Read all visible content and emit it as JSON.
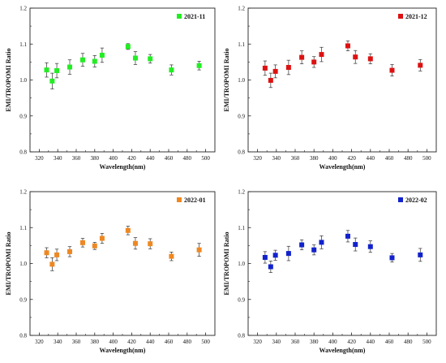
{
  "chart_data": [
    {
      "type": "scatter",
      "title": "",
      "xlabel": "Wavelength(nm)",
      "ylabel": "EMI/TROPOMI Ratio",
      "xlim": [
        310,
        510
      ],
      "ylim": [
        0.8,
        1.2
      ],
      "xticks": [
        "320",
        "340",
        "360",
        "380",
        "400",
        "420",
        "440",
        "460",
        "480",
        "500"
      ],
      "yticks": [
        "0.8",
        "0.9",
        "1.0",
        "1.1",
        "1.2"
      ],
      "legend_position": "top-right",
      "grid": false,
      "series": [
        {
          "name": "2021-11",
          "color": "#22ee22",
          "marker": "square",
          "x": [
            328,
            334,
            339,
            353,
            367,
            380,
            388,
            416,
            424,
            440,
            463,
            493
          ],
          "y": [
            1.028,
            0.997,
            1.026,
            1.036,
            1.056,
            1.052,
            1.069,
            1.093,
            1.061,
            1.059,
            1.028,
            1.04
          ],
          "err": [
            0.02,
            0.022,
            0.02,
            0.02,
            0.018,
            0.016,
            0.02,
            0.008,
            0.018,
            0.012,
            0.014,
            0.012
          ]
        }
      ]
    },
    {
      "type": "scatter",
      "title": "",
      "xlabel": "Wavelength(nm)",
      "ylabel": "EMI/TROPOMI Ratio",
      "xlim": [
        310,
        510
      ],
      "ylim": [
        0.8,
        1.2
      ],
      "xticks": [
        "320",
        "340",
        "360",
        "380",
        "400",
        "420",
        "440",
        "460",
        "480",
        "500"
      ],
      "yticks": [
        "0.8",
        "0.9",
        "1.0",
        "1.1",
        "1.2"
      ],
      "legend_position": "top-right",
      "grid": false,
      "series": [
        {
          "name": "2021-12",
          "color": "#dd1111",
          "marker": "square",
          "x": [
            328,
            334,
            339,
            353,
            367,
            380,
            388,
            416,
            424,
            440,
            463,
            493
          ],
          "y": [
            1.033,
            0.999,
            1.024,
            1.035,
            1.063,
            1.05,
            1.071,
            1.095,
            1.064,
            1.059,
            1.027,
            1.041
          ],
          "err": [
            0.02,
            0.02,
            0.018,
            0.02,
            0.018,
            0.015,
            0.02,
            0.014,
            0.018,
            0.014,
            0.016,
            0.016
          ]
        }
      ]
    },
    {
      "type": "scatter",
      "title": "",
      "xlabel": "Wavelength(nm)",
      "ylabel": "EMI/TROPOMI Ratio",
      "xlim": [
        310,
        510
      ],
      "ylim": [
        0.8,
        1.2
      ],
      "xticks": [
        "320",
        "340",
        "360",
        "380",
        "400",
        "420",
        "440",
        "460",
        "480",
        "500"
      ],
      "yticks": [
        "0.8",
        "0.9",
        "1.0",
        "1.1",
        "1.2"
      ],
      "legend_position": "top-right",
      "grid": false,
      "series": [
        {
          "name": "2022-01",
          "color": "#ee8822",
          "marker": "square",
          "x": [
            328,
            334,
            339,
            353,
            367,
            380,
            388,
            416,
            424,
            440,
            463,
            493
          ],
          "y": [
            1.03,
            0.998,
            1.024,
            1.033,
            1.058,
            1.049,
            1.07,
            1.092,
            1.056,
            1.055,
            1.02,
            1.038
          ],
          "err": [
            0.014,
            0.018,
            0.016,
            0.014,
            0.012,
            0.01,
            0.014,
            0.012,
            0.016,
            0.014,
            0.012,
            0.018
          ]
        }
      ]
    },
    {
      "type": "scatter",
      "title": "",
      "xlabel": "Wavelength(nm)",
      "ylabel": "EMI/TROPOMI Ratio",
      "xlim": [
        310,
        510
      ],
      "ylim": [
        0.8,
        1.2
      ],
      "xticks": [
        "320",
        "340",
        "360",
        "380",
        "400",
        "420",
        "440",
        "460",
        "480",
        "500"
      ],
      "yticks": [
        "0.8",
        "0.9",
        "1.0",
        "1.1",
        "1.2"
      ],
      "legend_position": "top-right",
      "grid": false,
      "series": [
        {
          "name": "2022-02",
          "color": "#1122cc",
          "marker": "square",
          "x": [
            328,
            334,
            339,
            353,
            367,
            380,
            388,
            416,
            424,
            440,
            463,
            493
          ],
          "y": [
            1.017,
            0.991,
            1.023,
            1.028,
            1.052,
            1.038,
            1.059,
            1.076,
            1.053,
            1.047,
            1.016,
            1.024
          ],
          "err": [
            0.016,
            0.016,
            0.014,
            0.02,
            0.014,
            0.014,
            0.018,
            0.016,
            0.018,
            0.016,
            0.012,
            0.018
          ]
        }
      ]
    }
  ]
}
